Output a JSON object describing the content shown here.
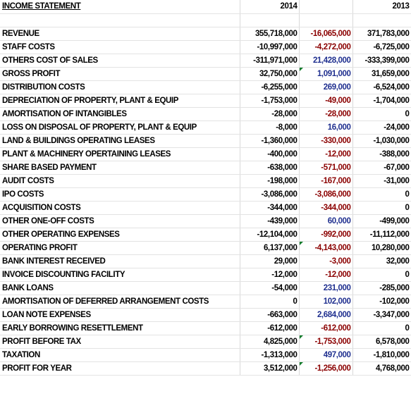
{
  "header": {
    "title": "INCOME STATEMENT",
    "col_2014": "2014",
    "col_var": "",
    "col_2013": "2013"
  },
  "colors": {
    "negative_variance": "#8b0000",
    "positive_variance": "#1f2f8f",
    "note_marker": "#0f7b2a"
  },
  "rows": [
    {
      "label": "REVENUE",
      "y2014": "355,718,000",
      "variance": "-16,065,000",
      "y2013": "371,783,000",
      "sign": "neg",
      "marker": false
    },
    {
      "label": "STAFF COSTS",
      "y2014": "-10,997,000",
      "variance": "-4,272,000",
      "y2013": "-6,725,000",
      "sign": "neg",
      "marker": false
    },
    {
      "label": "OTHERS COST OF SALES",
      "y2014": "-311,971,000",
      "variance": "21,428,000",
      "y2013": "-333,399,000",
      "sign": "pos",
      "marker": false
    },
    {
      "label": "GROSS PROFIT",
      "y2014": "32,750,000",
      "variance": "1,091,000",
      "y2013": "31,659,000",
      "sign": "pos",
      "marker": true
    },
    {
      "label": "DISTRIBUTION COSTS",
      "y2014": "-6,255,000",
      "variance": "269,000",
      "y2013": "-6,524,000",
      "sign": "pos",
      "marker": false
    },
    {
      "label": "DEPRECIATION OF PROPERTY, PLANT & EQUIP",
      "y2014": "-1,753,000",
      "variance": "-49,000",
      "y2013": "-1,704,000",
      "sign": "neg",
      "marker": false
    },
    {
      "label": "AMORTISATION OF INTANGIBLES",
      "y2014": "-28,000",
      "variance": "-28,000",
      "y2013": "0",
      "sign": "neg",
      "marker": false
    },
    {
      "label": "LOSS ON DISPOSAL OF PROPERTY, PLANT & EQUIP",
      "y2014": "-8,000",
      "variance": "16,000",
      "y2013": "-24,000",
      "sign": "pos",
      "marker": false
    },
    {
      "label": "LAND & BUILDINGS OPERATING LEASES",
      "y2014": "-1,360,000",
      "variance": "-330,000",
      "y2013": "-1,030,000",
      "sign": "neg",
      "marker": false
    },
    {
      "label": "PLANT & MACHINERY OPERTAINING LEASES",
      "y2014": "-400,000",
      "variance": "-12,000",
      "y2013": "-388,000",
      "sign": "neg",
      "marker": false
    },
    {
      "label": "SHARE BASED PAYMENT",
      "y2014": "-638,000",
      "variance": "-571,000",
      "y2013": "-67,000",
      "sign": "neg",
      "marker": false
    },
    {
      "label": "AUDIT COSTS",
      "y2014": "-198,000",
      "variance": "-167,000",
      "y2013": "-31,000",
      "sign": "neg",
      "marker": false
    },
    {
      "label": "IPO COSTS",
      "y2014": "-3,086,000",
      "variance": "-3,086,000",
      "y2013": "0",
      "sign": "neg",
      "marker": false
    },
    {
      "label": "ACQUISITION COSTS",
      "y2014": "-344,000",
      "variance": "-344,000",
      "y2013": "0",
      "sign": "neg",
      "marker": false
    },
    {
      "label": "OTHER ONE-OFF COSTS",
      "y2014": "-439,000",
      "variance": "60,000",
      "y2013": "-499,000",
      "sign": "pos",
      "marker": false
    },
    {
      "label": "OTHER OPERATING EXPENSES",
      "y2014": "-12,104,000",
      "variance": "-992,000",
      "y2013": "-11,112,000",
      "sign": "neg",
      "marker": false
    },
    {
      "label": "OPERATING PROFIT",
      "y2014": "6,137,000",
      "variance": "-4,143,000",
      "y2013": "10,280,000",
      "sign": "neg",
      "marker": true
    },
    {
      "label": "BANK INTEREST RECEIVED",
      "y2014": "29,000",
      "variance": "-3,000",
      "y2013": "32,000",
      "sign": "neg",
      "marker": false
    },
    {
      "label": "INVOICE DISCOUNTING FACILITY",
      "y2014": "-12,000",
      "variance": "-12,000",
      "y2013": "0",
      "sign": "neg",
      "marker": false
    },
    {
      "label": "BANK LOANS",
      "y2014": "-54,000",
      "variance": "231,000",
      "y2013": "-285,000",
      "sign": "pos",
      "marker": false
    },
    {
      "label": "AMORTISATION OF DEFERRED ARRANGEMENT COSTS",
      "y2014": "0",
      "variance": "102,000",
      "y2013": "-102,000",
      "sign": "pos",
      "marker": false
    },
    {
      "label": "LOAN NOTE EXPENSES",
      "y2014": "-663,000",
      "variance": "2,684,000",
      "y2013": "-3,347,000",
      "sign": "pos",
      "marker": false
    },
    {
      "label": "EARLY BORROWING RESETTLEMENT",
      "y2014": "-612,000",
      "variance": "-612,000",
      "y2013": "0",
      "sign": "neg",
      "marker": false
    },
    {
      "label": "PROFIT BEFORE TAX",
      "y2014": "4,825,000",
      "variance": "-1,753,000",
      "y2013": "6,578,000",
      "sign": "neg",
      "marker": true
    },
    {
      "label": "TAXATION",
      "y2014": "-1,313,000",
      "variance": "497,000",
      "y2013": "-1,810,000",
      "sign": "pos",
      "marker": false
    },
    {
      "label": "PROFIT FOR YEAR",
      "y2014": "3,512,000",
      "variance": "-1,256,000",
      "y2013": "4,768,000",
      "sign": "neg",
      "marker": true
    }
  ]
}
